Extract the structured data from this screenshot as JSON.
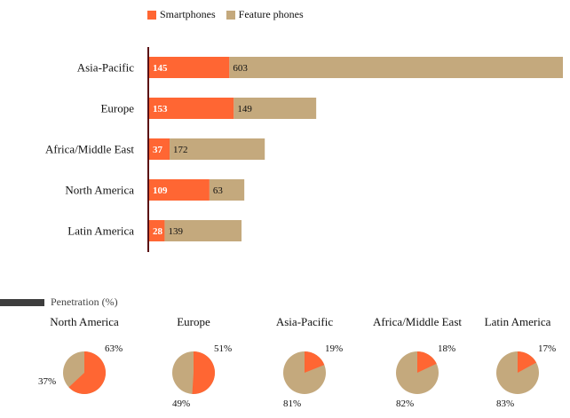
{
  "chart_data": [
    {
      "type": "bar",
      "orientation": "horizontal",
      "stacked": true,
      "categories": [
        "Asia-Pacific",
        "Europe",
        "Africa/Middle East",
        "North America",
        "Latin America"
      ],
      "series": [
        {
          "name": "Smartphones",
          "values": [
            145,
            153,
            37,
            109,
            28
          ],
          "color": "#ff6633"
        },
        {
          "name": "Feature phones",
          "values": [
            603,
            149,
            172,
            63,
            139
          ],
          "color": "#c4a97d"
        }
      ],
      "xlim": [
        0,
        748
      ],
      "legend_position": "top",
      "grid": false
    },
    {
      "type": "pie",
      "title": "Penetration (%)",
      "pies": [
        {
          "region": "North America",
          "slices": [
            {
              "series": "Smartphones",
              "value": 63,
              "label": "63%"
            },
            {
              "series": "Feature phones",
              "value": 37,
              "label": "37%"
            }
          ]
        },
        {
          "region": "Europe",
          "slices": [
            {
              "series": "Smartphones",
              "value": 51,
              "label": "51%"
            },
            {
              "series": "Feature phones",
              "value": 49,
              "label": "49%"
            }
          ]
        },
        {
          "region": "Asia-Pacific",
          "slices": [
            {
              "series": "Smartphones",
              "value": 19,
              "label": "19%"
            },
            {
              "series": "Feature phones",
              "value": 81,
              "label": "81%"
            }
          ]
        },
        {
          "region": "Africa/Middle East",
          "slices": [
            {
              "series": "Smartphones",
              "value": 18,
              "label": "18%"
            },
            {
              "series": "Feature phones",
              "value": 82,
              "label": "82%"
            }
          ]
        },
        {
          "region": "Latin America",
          "slices": [
            {
              "series": "Smartphones",
              "value": 17,
              "label": "17%"
            },
            {
              "series": "Feature phones",
              "value": 83,
              "label": "83%"
            }
          ]
        }
      ]
    }
  ]
}
